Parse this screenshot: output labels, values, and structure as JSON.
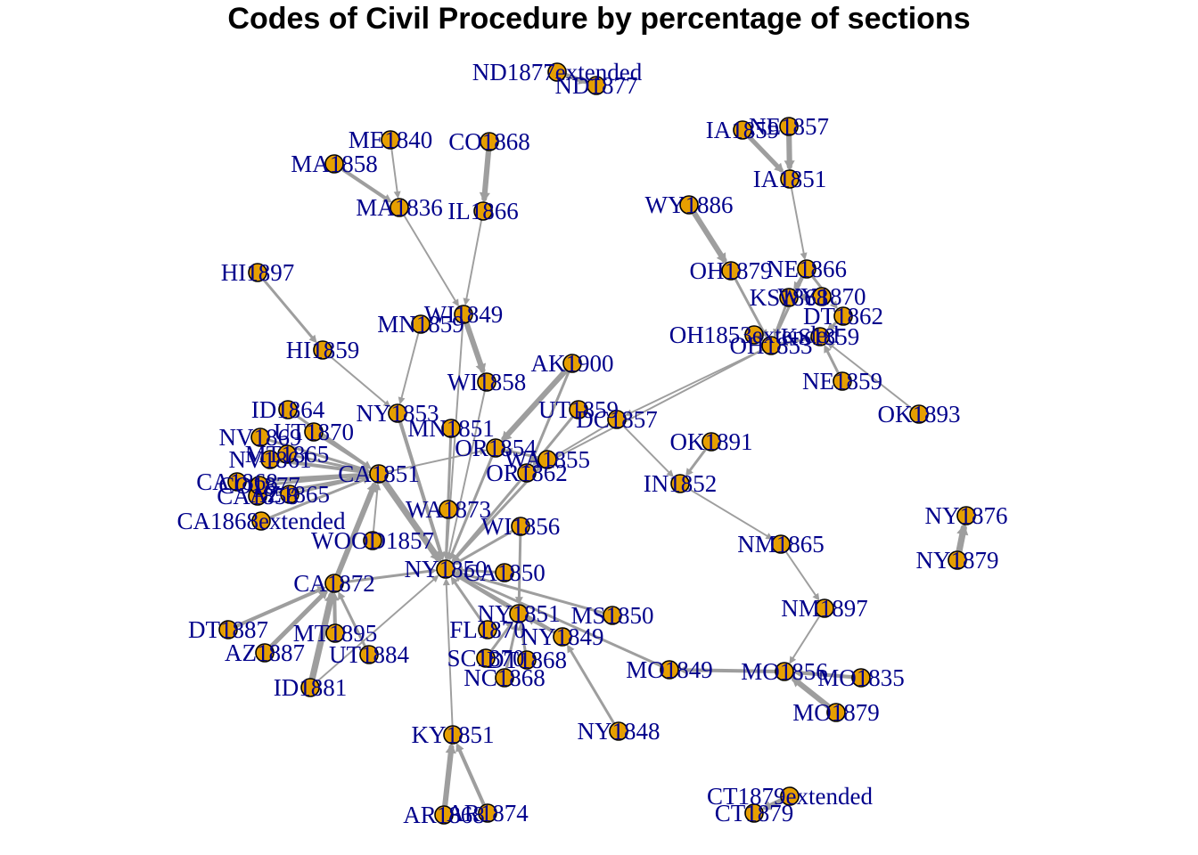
{
  "title": "Codes of Civil Procedure by percentage of sections",
  "colors": {
    "node": "#e69f00",
    "label": "#00008b",
    "edge": "#9e9e9e"
  },
  "nodes": [
    {
      "id": "ND1877extended",
      "label": "ND1877extended"
    },
    {
      "id": "ND1877",
      "label": "ND1877"
    },
    {
      "id": "ME1840",
      "label": "ME1840"
    },
    {
      "id": "CO1868",
      "label": "CO1868"
    },
    {
      "id": "MA1858",
      "label": "MA1858"
    },
    {
      "id": "MA1836",
      "label": "MA1836"
    },
    {
      "id": "IL1866",
      "label": "IL1866"
    },
    {
      "id": "IA1859",
      "label": "IA1859"
    },
    {
      "id": "NE1857",
      "label": "NE1857"
    },
    {
      "id": "IA1851",
      "label": "IA1851"
    },
    {
      "id": "WY1886",
      "label": "WY1886"
    },
    {
      "id": "HI1897",
      "label": "HI1897"
    },
    {
      "id": "OH1879",
      "label": "OH1879"
    },
    {
      "id": "NE1866",
      "label": "NE1866"
    },
    {
      "id": "KS1868",
      "label": "KS1868"
    },
    {
      "id": "WY1870",
      "label": "WY1870"
    },
    {
      "id": "DT1862",
      "label": "DT1862"
    },
    {
      "id": "OH1853extended",
      "label": "OH1853extended"
    },
    {
      "id": "OH1853",
      "label": "OH1853"
    },
    {
      "id": "KS1859",
      "label": "KS1859"
    },
    {
      "id": "WI1849",
      "label": "WI1849"
    },
    {
      "id": "MN1859",
      "label": "MN1859"
    },
    {
      "id": "HI1859",
      "label": "HI1859"
    },
    {
      "id": "AK1900",
      "label": "AK1900"
    },
    {
      "id": "WI1858",
      "label": "WI1858"
    },
    {
      "id": "NE1859",
      "label": "NE1859"
    },
    {
      "id": "OK1893",
      "label": "OK1893"
    },
    {
      "id": "ID1864",
      "label": "ID1864"
    },
    {
      "id": "NY1853",
      "label": "NY1853"
    },
    {
      "id": "UT1859",
      "label": "UT1859"
    },
    {
      "id": "DC1857",
      "label": "DC1857"
    },
    {
      "id": "UT1870",
      "label": "UT1870"
    },
    {
      "id": "MN1851",
      "label": "MN1851"
    },
    {
      "id": "OK1891",
      "label": "OK1891"
    },
    {
      "id": "NV1869",
      "label": "NV1869"
    },
    {
      "id": "MT1865",
      "label": "MT1865"
    },
    {
      "id": "OR1854",
      "label": "OR1854"
    },
    {
      "id": "NV1861",
      "label": "NV1861"
    },
    {
      "id": "WA1855",
      "label": "WA1855"
    },
    {
      "id": "CA1851",
      "label": "CA1851"
    },
    {
      "id": "OR1862",
      "label": "OR1862"
    },
    {
      "id": "IN1852",
      "label": "IN1852"
    },
    {
      "id": "CA1868",
      "label": "CA1868"
    },
    {
      "id": "AZ1865",
      "label": "AZ1865"
    },
    {
      "id": "CA1858",
      "label": "CA1858"
    },
    {
      "id": "CO1877",
      "label": "CO1877"
    },
    {
      "id": "CA1868extended",
      "label": "CA1868extended"
    },
    {
      "id": "WA1873",
      "label": "WA1873"
    },
    {
      "id": "WI1856",
      "label": "WI1856"
    },
    {
      "id": "NY1876",
      "label": "NY1876"
    },
    {
      "id": "WOOD1857",
      "label": "WOOD1857"
    },
    {
      "id": "NM1865",
      "label": "NM1865"
    },
    {
      "id": "NY1879",
      "label": "NY1879"
    },
    {
      "id": "NY1850",
      "label": "NY1850"
    },
    {
      "id": "CA1850",
      "label": "CA1850"
    },
    {
      "id": "CA1872",
      "label": "CA1872"
    },
    {
      "id": "NM1897",
      "label": "NM1897"
    },
    {
      "id": "NY1851",
      "label": "NY1851"
    },
    {
      "id": "MS1850",
      "label": "MS1850"
    },
    {
      "id": "DT1887",
      "label": "DT1887"
    },
    {
      "id": "MT1895",
      "label": "MT1895"
    },
    {
      "id": "FL1870",
      "label": "FL1870"
    },
    {
      "id": "NY1849",
      "label": "NY1849"
    },
    {
      "id": "AZ1887",
      "label": "AZ1887"
    },
    {
      "id": "UT1884",
      "label": "UT1884"
    },
    {
      "id": "SC1870",
      "label": "SC1870"
    },
    {
      "id": "DT1868",
      "label": "DT1868"
    },
    {
      "id": "MO1849",
      "label": "MO1849"
    },
    {
      "id": "MO1856",
      "label": "MO1856"
    },
    {
      "id": "MO1835",
      "label": "MO1835"
    },
    {
      "id": "ID1881",
      "label": "ID1881"
    },
    {
      "id": "NC1868",
      "label": "NC1868"
    },
    {
      "id": "MO1879",
      "label": "MO1879"
    },
    {
      "id": "NY1848",
      "label": "NY1848"
    },
    {
      "id": "KY1851",
      "label": "KY1851"
    },
    {
      "id": "CT1879extended",
      "label": "CT1879extended"
    },
    {
      "id": "AR1868",
      "label": "AR1868"
    },
    {
      "id": "AR1874",
      "label": "AR1874"
    },
    {
      "id": "CT1879",
      "label": "CT1879"
    }
  ],
  "edges": [
    {
      "source": "ND1877extended",
      "target": "ND1877",
      "weight": 4
    },
    {
      "source": "ME1840",
      "target": "MA1836",
      "weight": 1
    },
    {
      "source": "MA1858",
      "target": "MA1836",
      "weight": 3
    },
    {
      "source": "CO1868",
      "target": "IL1866",
      "weight": 5
    },
    {
      "source": "IA1859",
      "target": "IA1851",
      "weight": 4
    },
    {
      "source": "NE1857",
      "target": "IA1851",
      "weight": 5
    },
    {
      "source": "IA1851",
      "target": "NE1866",
      "weight": 1
    },
    {
      "source": "WY1886",
      "target": "OH1879",
      "weight": 5
    },
    {
      "source": "OH1879",
      "target": "OH1853",
      "weight": 2
    },
    {
      "source": "NE1866",
      "target": "KS1868",
      "weight": 2
    },
    {
      "source": "NE1866",
      "target": "OH1853",
      "weight": 2
    },
    {
      "source": "NE1866",
      "target": "DT1862",
      "weight": 2
    },
    {
      "source": "KS1868",
      "target": "OH1853",
      "weight": 2
    },
    {
      "source": "WY1870",
      "target": "KS1868",
      "weight": 2
    },
    {
      "source": "DT1862",
      "target": "KS1859",
      "weight": 2
    },
    {
      "source": "OH1853extended",
      "target": "OH1853",
      "weight": 2
    },
    {
      "source": "KS1859",
      "target": "OH1853",
      "weight": 2
    },
    {
      "source": "NE1859",
      "target": "KS1859",
      "weight": 2
    },
    {
      "source": "OK1893",
      "target": "KS1859",
      "weight": 1
    },
    {
      "source": "MA1836",
      "target": "WI1849",
      "weight": 1
    },
    {
      "source": "IL1866",
      "target": "WI1849",
      "weight": 1
    },
    {
      "source": "HI1897",
      "target": "HI1859",
      "weight": 2
    },
    {
      "source": "HI1859",
      "target": "NY1853",
      "weight": 1
    },
    {
      "source": "MN1859",
      "target": "NY1853",
      "weight": 1
    },
    {
      "source": "WI1849",
      "target": "WI1858",
      "weight": 5
    },
    {
      "source": "WI1849",
      "target": "NY1850",
      "weight": 1
    },
    {
      "source": "WI1858",
      "target": "NY1850",
      "weight": 1
    },
    {
      "source": "AK1900",
      "target": "OR1854",
      "weight": 5
    },
    {
      "source": "AK1900",
      "target": "OR1862",
      "weight": 2
    },
    {
      "source": "UT1859",
      "target": "OR1862",
      "weight": 2
    },
    {
      "source": "DC1857",
      "target": "OR1862",
      "weight": 1
    },
    {
      "source": "DC1857",
      "target": "IN1852",
      "weight": 1
    },
    {
      "source": "OK1891",
      "target": "IN1852",
      "weight": 2
    },
    {
      "source": "IN1852",
      "target": "NM1865",
      "weight": 1
    },
    {
      "source": "OH1853",
      "target": "DC1857",
      "weight": 1
    },
    {
      "source": "OH1853",
      "target": "OR1862",
      "weight": 1
    },
    {
      "source": "NY1853",
      "target": "NY1850",
      "weight": 3
    },
    {
      "source": "MN1851",
      "target": "NY1850",
      "weight": 2
    },
    {
      "source": "OR1854",
      "target": "NY1850",
      "weight": 2
    },
    {
      "source": "OR1862",
      "target": "NY1850",
      "weight": 2
    },
    {
      "source": "WA1855",
      "target": "NY1850",
      "weight": 2
    },
    {
      "source": "WA1855",
      "target": "OR1854",
      "weight": 2
    },
    {
      "source": "WA1873",
      "target": "NY1850",
      "weight": 2
    },
    {
      "source": "WI1856",
      "target": "NY1850",
      "weight": 2
    },
    {
      "source": "WI1856",
      "target": "NY1851",
      "weight": 2
    },
    {
      "source": "CA1851",
      "target": "NY1850",
      "weight": 6
    },
    {
      "source": "CA1851",
      "target": "OR1854",
      "weight": 1
    },
    {
      "source": "CA1850",
      "target": "NY1850",
      "weight": 2
    },
    {
      "source": "ID1864",
      "target": "CA1851",
      "weight": 2
    },
    {
      "source": "UT1870",
      "target": "CA1851",
      "weight": 2
    },
    {
      "source": "NV1869",
      "target": "CA1851",
      "weight": 2
    },
    {
      "source": "MT1865",
      "target": "CA1851",
      "weight": 2
    },
    {
      "source": "NV1861",
      "target": "CA1851",
      "weight": 3
    },
    {
      "source": "CA1868",
      "target": "CA1851",
      "weight": 3
    },
    {
      "source": "CO1877",
      "target": "CA1851",
      "weight": 2
    },
    {
      "source": "AZ1865",
      "target": "CA1851",
      "weight": 2
    },
    {
      "source": "CA1858",
      "target": "CA1851",
      "weight": 2
    },
    {
      "source": "CA1868extended",
      "target": "CA1851",
      "weight": 2
    },
    {
      "source": "WOOD1857",
      "target": "CA1851",
      "weight": 1
    },
    {
      "source": "CA1872",
      "target": "CA1851",
      "weight": 5
    },
    {
      "source": "CA1872",
      "target": "NY1850",
      "weight": 2
    },
    {
      "source": "DT1887",
      "target": "CA1872",
      "weight": 3
    },
    {
      "source": "MT1895",
      "target": "CA1872",
      "weight": 3
    },
    {
      "source": "AZ1887",
      "target": "CA1872",
      "weight": 4
    },
    {
      "source": "UT1884",
      "target": "CA1872",
      "weight": 2
    },
    {
      "source": "ID1881",
      "target": "CA1872",
      "weight": 6
    },
    {
      "source": "ID1881",
      "target": "NY1850",
      "weight": 1
    },
    {
      "source": "NY1851",
      "target": "NY1850",
      "weight": 2
    },
    {
      "source": "NY1849",
      "target": "NY1850",
      "weight": 3
    },
    {
      "source": "MS1850",
      "target": "NY1850",
      "weight": 2
    },
    {
      "source": "FL1870",
      "target": "NY1850",
      "weight": 2
    },
    {
      "source": "SC1870",
      "target": "NY1851",
      "weight": 2
    },
    {
      "source": "DT1868",
      "target": "NY1851",
      "weight": 2
    },
    {
      "source": "NC1868",
      "target": "NY1851",
      "weight": 2
    },
    {
      "source": "NY1849",
      "target": "NY1851",
      "weight": 2
    },
    {
      "source": "MO1849",
      "target": "NY1850",
      "weight": 2
    },
    {
      "source": "MO1856",
      "target": "MO1849",
      "weight": 3
    },
    {
      "source": "NM1865",
      "target": "NM1897",
      "weight": 1
    },
    {
      "source": "NM1897",
      "target": "MO1856",
      "weight": 1
    },
    {
      "source": "MO1835",
      "target": "MO1856",
      "weight": 3
    },
    {
      "source": "MO1879",
      "target": "MO1856",
      "weight": 5
    },
    {
      "source": "NY1848",
      "target": "NY1849",
      "weight": 2
    },
    {
      "source": "KY1851",
      "target": "NY1850",
      "weight": 1
    },
    {
      "source": "AR1868",
      "target": "KY1851",
      "weight": 5
    },
    {
      "source": "AR1874",
      "target": "KY1851",
      "weight": 3
    },
    {
      "source": "NY1879",
      "target": "NY1876",
      "weight": 6
    },
    {
      "source": "CT1879extended",
      "target": "CT1879",
      "weight": 4
    }
  ]
}
